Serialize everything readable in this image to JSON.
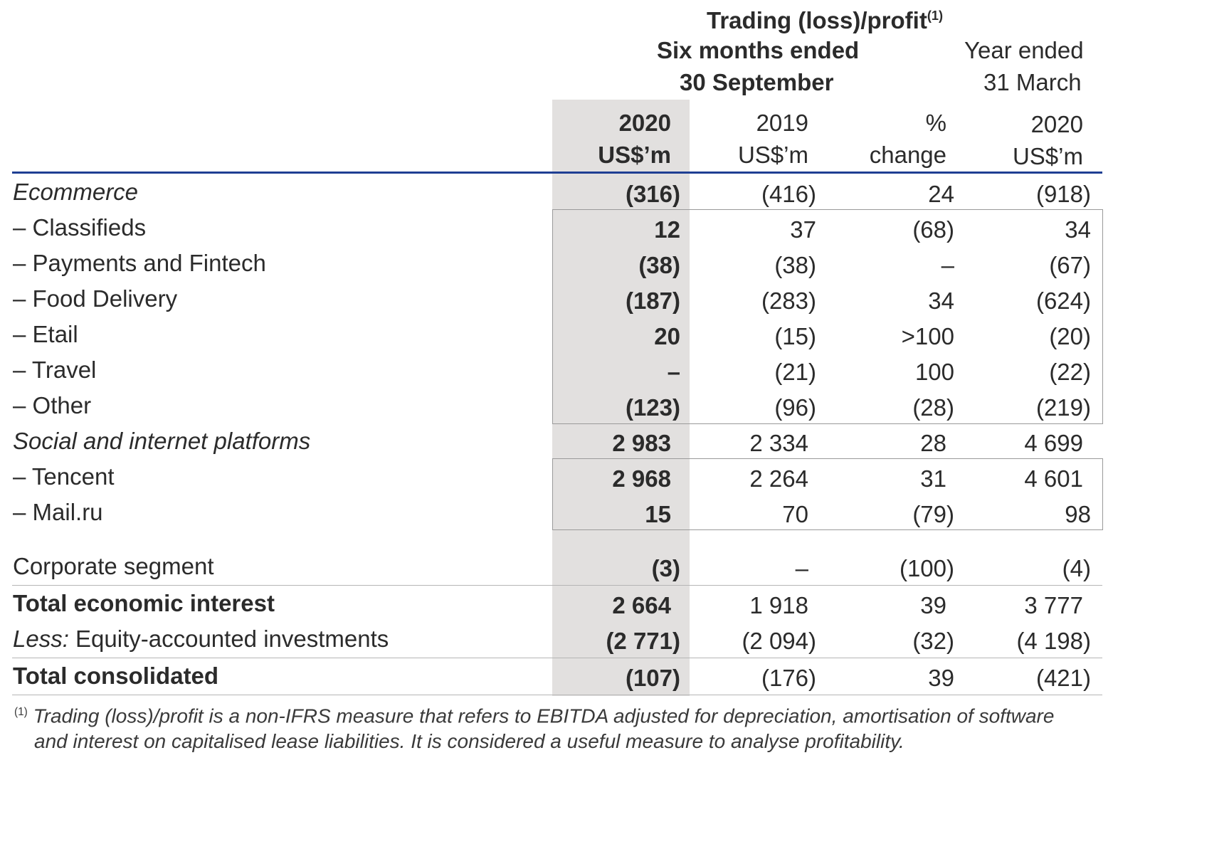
{
  "header": {
    "group_title": "Trading (loss)/profit",
    "group_title_sup": "(1)",
    "six_months_line1": "Six months ended",
    "six_months_line2": "30 September",
    "year_ended_line1": "Year ended",
    "year_ended_line2": "31 March",
    "columns": [
      {
        "line1": "2020",
        "line2": "US$’m"
      },
      {
        "line1": "2019",
        "line2": "US$’m"
      },
      {
        "line1": "%",
        "line2": "change"
      },
      {
        "line1": "2020",
        "line2": "US$’m"
      }
    ]
  },
  "rows": [
    {
      "label": "Ecommerce",
      "values": [
        "(316)",
        "(416)",
        "24",
        "(918)"
      ]
    },
    {
      "label": "– Classifieds",
      "values": [
        "12",
        "37",
        "(68)",
        "34"
      ]
    },
    {
      "label": "– Payments and Fintech",
      "values": [
        "(38)",
        "(38)",
        "–",
        "(67)"
      ]
    },
    {
      "label": "– Food Delivery",
      "values": [
        "(187)",
        "(283)",
        "34",
        "(624)"
      ]
    },
    {
      "label": "– Etail",
      "values": [
        "20",
        "(15)",
        ">100",
        "(20)"
      ]
    },
    {
      "label": "– Travel",
      "values": [
        "–",
        "(21)",
        "100",
        "(22)"
      ]
    },
    {
      "label": "– Other",
      "values": [
        "(123)",
        "(96)",
        "(28)",
        "(219)"
      ]
    },
    {
      "label": "Social and internet platforms",
      "values": [
        "2 983",
        "2 334",
        "28",
        "4 699"
      ]
    },
    {
      "label": "– Tencent",
      "values": [
        "2 968",
        "2 264",
        "31",
        "4 601"
      ]
    },
    {
      "label": "– Mail.ru",
      "values": [
        "15",
        "70",
        "(79)",
        "98"
      ]
    },
    {
      "label": "Corporate segment",
      "values": [
        "(3)",
        "–",
        "(100)",
        "(4)"
      ]
    },
    {
      "label": "Total economic interest",
      "values": [
        "2 664",
        "1 918",
        "39",
        "3 777"
      ]
    },
    {
      "label_prefix": "Less:",
      "label": " Equity-accounted investments",
      "values": [
        "(2 771)",
        "(2 094)",
        "(32)",
        "(4 198)"
      ]
    },
    {
      "label": "Total consolidated",
      "values": [
        "(107)",
        "(176)",
        "39",
        "(421)"
      ]
    }
  ],
  "footnote": {
    "marker": "(1)",
    "line1": "Trading (loss)/profit is a non-IFRS measure that refers to EBITDA adjusted for depreciation, amortisation of software",
    "line2": "and interest on capitalised lease liabilities. It is considered a useful measure to analyse profitability."
  }
}
